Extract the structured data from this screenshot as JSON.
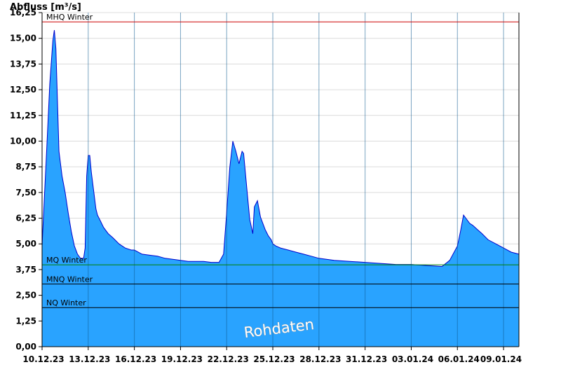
{
  "chart_data": {
    "type": "area",
    "ylabel": "Abfluss [m³/s]",
    "ylim": [
      0,
      16.25
    ],
    "yticks": [
      "0,00",
      "1,25",
      "2,50",
      "3,75",
      "5,00",
      "6,25",
      "7,50",
      "8,75",
      "10,00",
      "11,25",
      "12,50",
      "13,75",
      "15,00",
      "16,25"
    ],
    "ytick_values": [
      0,
      1.25,
      2.5,
      3.75,
      5,
      6.25,
      7.5,
      8.75,
      10,
      11.25,
      12.5,
      13.75,
      15,
      16.25
    ],
    "xlim": [
      0,
      31
    ],
    "xticks": [
      "10.12.23",
      "13.12.23",
      "16.12.23",
      "19.12.23",
      "22.12.23",
      "25.12.23",
      "28.12.23",
      "31.12.23",
      "03.01.24",
      "06.01.24",
      "09.01.24"
    ],
    "xtick_days": [
      0,
      3,
      6,
      9,
      12,
      15,
      18,
      21,
      24,
      27,
      30
    ],
    "grid": "horizontal",
    "colors": {
      "area_fill": "#29a3ff",
      "area_line": "#0000cc",
      "mhq": "#cc0000",
      "mq": "#008000",
      "mnq": "#000000",
      "nq": "#000000"
    },
    "reference_lines": [
      {
        "label": "MHQ Winter",
        "value": 15.8,
        "color": "#cc0000"
      },
      {
        "label": "MQ Winter",
        "value": 3.98,
        "color": "#008000"
      },
      {
        "label": "MNQ Winter",
        "value": 3.05,
        "color": "#000000"
      },
      {
        "label": "NQ Winter",
        "value": 1.9,
        "color": "#000000"
      }
    ],
    "annotation": "Rohdaten",
    "series": [
      {
        "x": [
          0,
          0.1,
          0.3,
          0.5,
          0.7,
          0.8,
          0.9,
          1.0,
          1.1,
          1.3,
          1.5,
          1.7,
          1.9,
          2.1,
          2.3,
          2.5,
          2.7,
          2.8,
          2.9,
          3.0,
          3.1,
          3.2,
          3.3,
          3.5,
          3.6,
          3.8,
          4.0,
          4.3,
          4.6,
          5.0,
          5.4,
          5.8,
          6.0,
          6.5,
          7.0,
          7.5,
          8.0,
          8.5,
          9.0,
          9.5,
          10.0,
          10.5,
          11.0,
          11.5,
          11.8,
          12.0,
          12.2,
          12.4,
          12.6,
          12.8,
          13.0,
          13.1,
          13.3,
          13.5,
          13.7,
          13.8,
          14.0,
          14.2,
          14.5,
          14.7,
          14.9,
          15.0,
          15.2,
          15.5,
          16.0,
          16.5,
          17.0,
          17.5,
          18.0,
          18.5,
          19.0,
          20.0,
          21.0,
          22.0,
          23.0,
          24.0,
          25.0,
          26.0,
          26.5,
          27.0,
          27.2,
          27.4,
          27.6,
          27.8,
          28.0,
          28.3,
          28.6,
          29.0,
          29.5,
          30.0,
          30.5,
          31.0
        ],
        "y": [
          4.9,
          6.5,
          9.6,
          12.8,
          14.9,
          15.4,
          14.5,
          12.0,
          9.5,
          8.3,
          7.5,
          6.5,
          5.6,
          4.9,
          4.5,
          4.3,
          4.3,
          4.8,
          8.3,
          9.3,
          9.3,
          8.5,
          7.9,
          6.7,
          6.4,
          6.1,
          5.8,
          5.5,
          5.3,
          5.0,
          4.8,
          4.7,
          4.7,
          4.5,
          4.45,
          4.4,
          4.3,
          4.25,
          4.2,
          4.15,
          4.15,
          4.15,
          4.1,
          4.1,
          4.5,
          6.5,
          8.7,
          10.0,
          9.5,
          8.9,
          9.5,
          9.4,
          7.8,
          6.2,
          5.5,
          6.8,
          7.1,
          6.3,
          5.7,
          5.4,
          5.2,
          5.0,
          4.9,
          4.8,
          4.7,
          4.6,
          4.5,
          4.4,
          4.3,
          4.25,
          4.2,
          4.15,
          4.1,
          4.05,
          4.0,
          4.0,
          3.95,
          3.9,
          4.2,
          4.9,
          5.6,
          6.4,
          6.2,
          6.0,
          5.9,
          5.7,
          5.5,
          5.2,
          5.0,
          4.8,
          4.6,
          4.5
        ]
      }
    ]
  }
}
